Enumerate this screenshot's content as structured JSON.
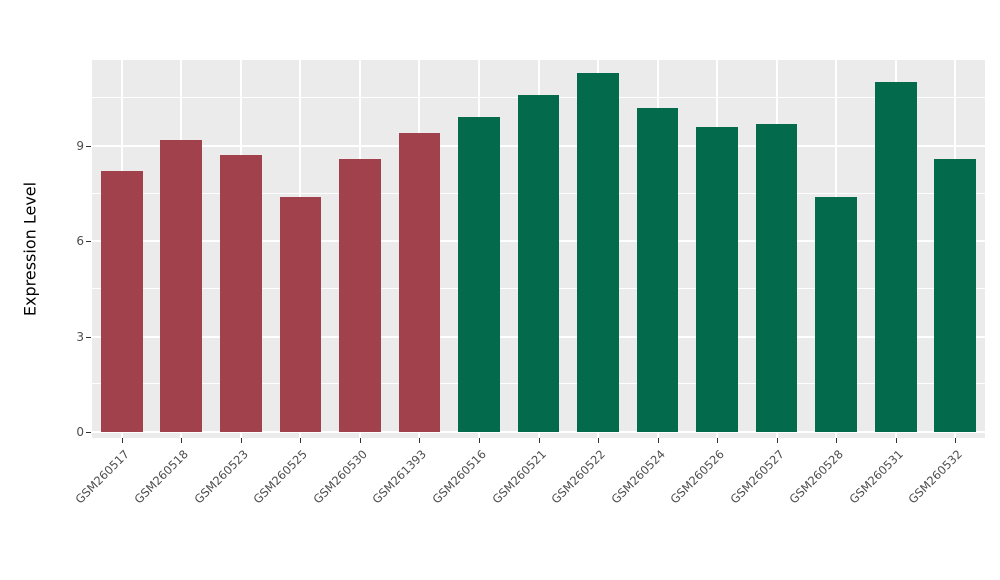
{
  "chart_data": {
    "type": "bar",
    "title": "",
    "xlabel": "",
    "ylabel": "Expression Level",
    "categories": [
      "GSM260517",
      "GSM260518",
      "GSM260523",
      "GSM260525",
      "GSM260530",
      "GSM261393",
      "GSM260516",
      "GSM260521",
      "GSM260522",
      "GSM260524",
      "GSM260526",
      "GSM260527",
      "GSM260528",
      "GSM260531",
      "GSM260532"
    ],
    "values": [
      8.2,
      9.2,
      8.7,
      7.4,
      8.6,
      9.4,
      9.9,
      10.6,
      11.3,
      10.2,
      9.6,
      9.7,
      7.4,
      11.0,
      8.6
    ],
    "bar_colors": [
      "#A0414B",
      "#A0414B",
      "#A0414B",
      "#A0414B",
      "#A0414B",
      "#A0414B",
      "#036B4B",
      "#036B4B",
      "#036B4B",
      "#036B4B",
      "#036B4B",
      "#036B4B",
      "#036B4B",
      "#036B4B",
      "#036B4B"
    ],
    "group_colors": {
      "group1": "#A0414B",
      "group2": "#036B4B"
    },
    "yticks": [
      0,
      3,
      6,
      9
    ],
    "ylim": [
      0,
      11.7
    ],
    "grid": true,
    "legend": "none",
    "panel_bg": "#EBEBEB",
    "grid_color": "#FFFFFF",
    "tick_label_color": "#4D4D4D"
  }
}
